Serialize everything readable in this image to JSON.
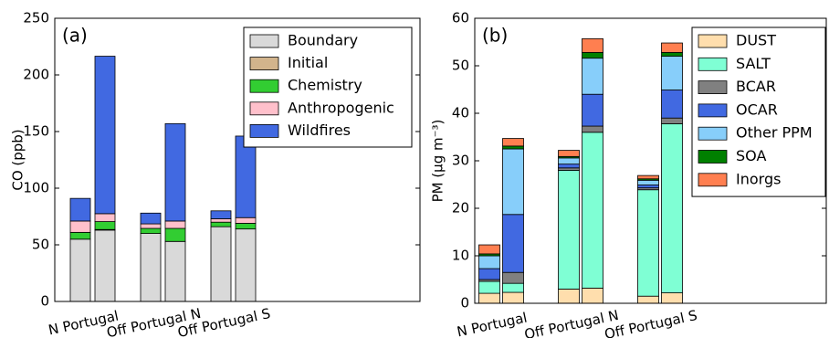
{
  "chart_data": [
    {
      "type": "bar",
      "stacked": true,
      "annotation": "(a)",
      "ylabel": "CO (ppb)",
      "categories": [
        "N Portugal",
        null,
        "Off Portugal N",
        null,
        "Off Portugal S",
        null
      ],
      "ylim": [
        0,
        250
      ],
      "yticks": [
        0,
        50,
        100,
        150,
        200,
        250
      ],
      "legend": "upper right",
      "series": [
        {
          "name": "Boundary",
          "color": "#d9d9d9",
          "values": [
            55,
            63,
            60,
            53,
            66,
            64
          ]
        },
        {
          "name": "Initial",
          "color": "#d2b48c",
          "values": [
            0,
            0.5,
            0,
            0,
            0,
            0
          ]
        },
        {
          "name": "Chemistry",
          "color": "#32cd32",
          "values": [
            6,
            7,
            4.5,
            11.5,
            4,
            5
          ]
        },
        {
          "name": "Anthropogenic",
          "color": "#ffc0cb",
          "values": [
            10,
            7,
            4,
            6.5,
            3,
            5
          ]
        },
        {
          "name": "Wildfires",
          "color": "#4169e1",
          "values": [
            20,
            139,
            9.5,
            86,
            7,
            72
          ]
        }
      ]
    },
    {
      "type": "bar",
      "stacked": true,
      "annotation": "(b)",
      "ylabel": "PM (μg m⁻³)",
      "categories": [
        "N Portugal",
        null,
        "Off Portugal N",
        null,
        "Off Portugal S",
        null
      ],
      "ylim": [
        0,
        60
      ],
      "yticks": [
        0,
        10,
        20,
        30,
        40,
        50,
        60
      ],
      "legend": "upper right",
      "series": [
        {
          "name": "DUST",
          "color": "#ffdead",
          "values": [
            2.1,
            2.3,
            3.0,
            3.2,
            1.5,
            2.2
          ]
        },
        {
          "name": "SALT",
          "color": "#7fffd4",
          "values": [
            2.5,
            1.9,
            25,
            32.8,
            22.4,
            35.6
          ]
        },
        {
          "name": "BCAR",
          "color": "#808080",
          "values": [
            0.4,
            2.3,
            0.5,
            1.3,
            0.4,
            1.2
          ]
        },
        {
          "name": "OCAR",
          "color": "#4169e1",
          "values": [
            2.3,
            12.2,
            0.8,
            6.7,
            0.6,
            5.9
          ]
        },
        {
          "name": "Other PPM",
          "color": "#87cefa",
          "values": [
            2.7,
            13.8,
            1.3,
            7.6,
            1.0,
            7.1
          ]
        },
        {
          "name": "SOA",
          "color": "#008000",
          "values": [
            0.4,
            0.6,
            0.3,
            1.2,
            0.3,
            0.8
          ]
        },
        {
          "name": "Inorgs",
          "color": "#ff7f50",
          "values": [
            1.9,
            1.6,
            1.3,
            2.9,
            0.7,
            2.0
          ]
        }
      ]
    }
  ]
}
